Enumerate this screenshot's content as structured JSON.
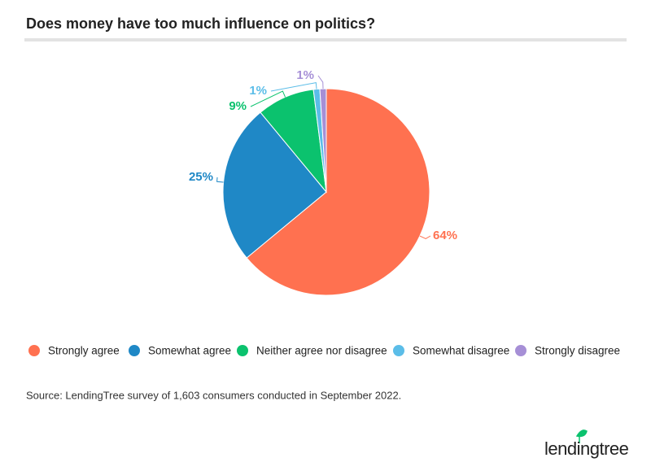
{
  "chart_data": {
    "type": "pie",
    "title": "Does money have too much influence on politics?",
    "categories": [
      "Strongly agree",
      "Somewhat agree",
      "Neither agree nor disagree",
      "Somewhat disagree",
      "Strongly disagree"
    ],
    "values": [
      64,
      25,
      9,
      1,
      1
    ],
    "value_labels": [
      "64%",
      "25%",
      "9%",
      "1%",
      "1%"
    ],
    "colors": [
      "#ff7150",
      "#1f88c6",
      "#0bc26e",
      "#5bbde8",
      "#a68fd6"
    ],
    "legend": "bottom",
    "source": "Source: LendingTree survey of 1,603 consumers conducted in September 2022.",
    "logo": "lendingtree"
  }
}
